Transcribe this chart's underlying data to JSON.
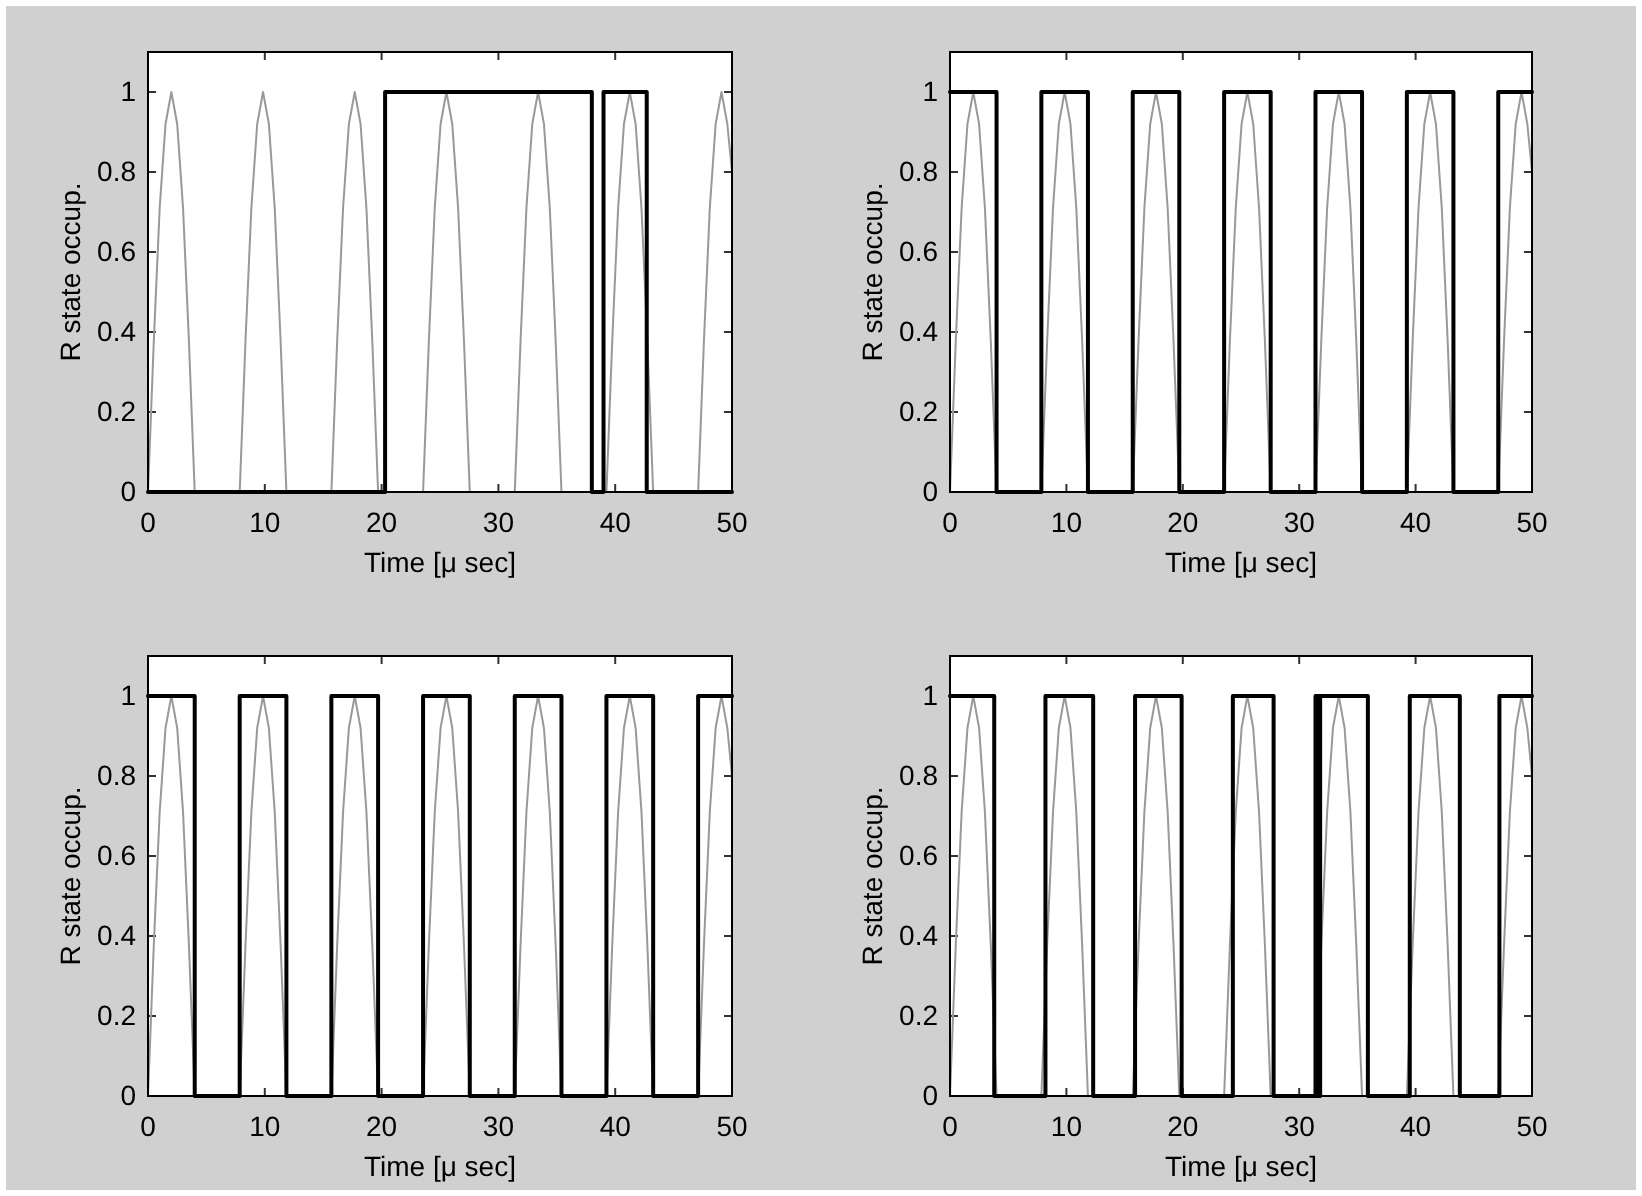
{
  "chart_data": [
    {
      "type": "line",
      "xlabel": "Time [μ sec]",
      "ylabel": "R state occup.",
      "xlim": [
        0,
        50
      ],
      "ylim": [
        0,
        1.1
      ],
      "xticks": [
        0,
        10,
        20,
        30,
        40,
        50
      ],
      "yticks": [
        0,
        0.2,
        0.4,
        0.6,
        0.8,
        1
      ],
      "series": [
        {
          "color": "#999999",
          "x": [
            0,
            0.5,
            1,
            1.5,
            2,
            2.5,
            3,
            3.5,
            4,
            7.85,
            8.35,
            8.85,
            9.35,
            9.85,
            10.35,
            10.85,
            11.35,
            11.85,
            15.7,
            16.2,
            16.7,
            17.2,
            17.7,
            18.2,
            18.7,
            19.2,
            19.7,
            23.55,
            24.05,
            24.55,
            25.05,
            25.55,
            26.05,
            26.55,
            27.05,
            27.55,
            31.4,
            31.9,
            32.4,
            32.9,
            33.4,
            33.9,
            34.4,
            34.9,
            35.4,
            39.25,
            39.75,
            40.25,
            40.75,
            41.25,
            41.75,
            42.25,
            42.75,
            43.25,
            47.1,
            47.6,
            48.1,
            48.6,
            49.1,
            49.6,
            50
          ],
          "values": [
            0,
            0.38,
            0.71,
            0.92,
            1,
            0.92,
            0.71,
            0.38,
            0,
            0,
            0.38,
            0.71,
            0.92,
            1,
            0.92,
            0.71,
            0.38,
            0,
            0,
            0.38,
            0.71,
            0.92,
            1,
            0.92,
            0.71,
            0.38,
            0,
            0,
            0.38,
            0.71,
            0.92,
            1,
            0.92,
            0.71,
            0.38,
            0,
            0,
            0.38,
            0.71,
            0.92,
            1,
            0.92,
            0.71,
            0.38,
            0,
            0,
            0.38,
            0.71,
            0.92,
            1,
            0.92,
            0.71,
            0.38,
            0,
            0,
            0.38,
            0.71,
            0.92,
            1,
            0.92,
            0.8
          ]
        },
        {
          "type": "step",
          "color": "#000000",
          "x": [
            0,
            20.3,
            38,
            39,
            42.7,
            50
          ],
          "values": [
            0,
            1,
            0,
            1,
            0,
            0
          ]
        }
      ]
    },
    {
      "type": "line",
      "xlabel": "Time [μ sec]",
      "ylabel": "R state occup.",
      "xlim": [
        0,
        50
      ],
      "ylim": [
        0,
        1.1
      ],
      "xticks": [
        0,
        10,
        20,
        30,
        40,
        50
      ],
      "yticks": [
        0,
        0.2,
        0.4,
        0.6,
        0.8,
        1
      ],
      "series": [
        {
          "color": "#999999",
          "x": [
            0,
            0.5,
            1,
            1.5,
            2,
            2.5,
            3,
            3.5,
            4,
            7.85,
            8.35,
            8.85,
            9.35,
            9.85,
            10.35,
            10.85,
            11.35,
            11.85,
            15.7,
            16.2,
            16.7,
            17.2,
            17.7,
            18.2,
            18.7,
            19.2,
            19.7,
            23.55,
            24.05,
            24.55,
            25.05,
            25.55,
            26.05,
            26.55,
            27.05,
            27.55,
            31.4,
            31.9,
            32.4,
            32.9,
            33.4,
            33.9,
            34.4,
            34.9,
            35.4,
            39.25,
            39.75,
            40.25,
            40.75,
            41.25,
            41.75,
            42.25,
            42.75,
            43.25,
            47.1,
            47.6,
            48.1,
            48.6,
            49.1,
            49.6,
            50
          ],
          "values": [
            0,
            0.38,
            0.71,
            0.92,
            1,
            0.92,
            0.71,
            0.38,
            0,
            0,
            0.38,
            0.71,
            0.92,
            1,
            0.92,
            0.71,
            0.38,
            0,
            0,
            0.38,
            0.71,
            0.92,
            1,
            0.92,
            0.71,
            0.38,
            0,
            0,
            0.38,
            0.71,
            0.92,
            1,
            0.92,
            0.71,
            0.38,
            0,
            0,
            0.38,
            0.71,
            0.92,
            1,
            0.92,
            0.71,
            0.38,
            0,
            0,
            0.38,
            0.71,
            0.92,
            1,
            0.92,
            0.71,
            0.38,
            0,
            0,
            0.38,
            0.71,
            0.92,
            1,
            0.92,
            0.8
          ]
        },
        {
          "type": "step",
          "color": "#000000",
          "x": [
            0,
            4,
            7.85,
            11.85,
            15.7,
            19.7,
            23.55,
            27.55,
            31.4,
            35.4,
            39.25,
            43.25,
            47.1,
            50
          ],
          "values": [
            1,
            0,
            1,
            0,
            1,
            0,
            1,
            0,
            1,
            0,
            1,
            0,
            1,
            1
          ]
        }
      ]
    },
    {
      "type": "line",
      "xlabel": "Time [μ sec]",
      "ylabel": "R state occup.",
      "xlim": [
        0,
        50
      ],
      "ylim": [
        0,
        1.1
      ],
      "xticks": [
        0,
        10,
        20,
        30,
        40,
        50
      ],
      "yticks": [
        0,
        0.2,
        0.4,
        0.6,
        0.8,
        1
      ],
      "series": [
        {
          "color": "#999999",
          "x": [
            0,
            0.5,
            1,
            1.5,
            2,
            2.5,
            3,
            3.5,
            4,
            7.85,
            8.35,
            8.85,
            9.35,
            9.85,
            10.35,
            10.85,
            11.35,
            11.85,
            15.7,
            16.2,
            16.7,
            17.2,
            17.7,
            18.2,
            18.7,
            19.2,
            19.7,
            23.55,
            24.05,
            24.55,
            25.05,
            25.55,
            26.05,
            26.55,
            27.05,
            27.55,
            31.4,
            31.9,
            32.4,
            32.9,
            33.4,
            33.9,
            34.4,
            34.9,
            35.4,
            39.25,
            39.75,
            40.25,
            40.75,
            41.25,
            41.75,
            42.25,
            42.75,
            43.25,
            47.1,
            47.6,
            48.1,
            48.6,
            49.1,
            49.6,
            50
          ],
          "values": [
            0,
            0.38,
            0.71,
            0.92,
            1,
            0.92,
            0.71,
            0.38,
            0,
            0,
            0.38,
            0.71,
            0.92,
            1,
            0.92,
            0.71,
            0.38,
            0,
            0,
            0.38,
            0.71,
            0.92,
            1,
            0.92,
            0.71,
            0.38,
            0,
            0,
            0.38,
            0.71,
            0.92,
            1,
            0.92,
            0.71,
            0.38,
            0,
            0,
            0.38,
            0.71,
            0.92,
            1,
            0.92,
            0.71,
            0.38,
            0,
            0,
            0.38,
            0.71,
            0.92,
            1,
            0.92,
            0.71,
            0.38,
            0,
            0,
            0.38,
            0.71,
            0.92,
            1,
            0.92,
            0.8
          ]
        },
        {
          "type": "step",
          "color": "#000000",
          "x": [
            0,
            4,
            7.85,
            11.85,
            15.7,
            19.7,
            23.55,
            27.55,
            31.4,
            35.4,
            39.25,
            43.25,
            47.1,
            50
          ],
          "values": [
            1,
            0,
            1,
            0,
            1,
            0,
            1,
            0,
            1,
            0,
            1,
            0,
            1,
            1
          ]
        }
      ]
    },
    {
      "type": "line",
      "xlabel": "Time [μ sec]",
      "ylabel": "R state occup.",
      "xlim": [
        0,
        50
      ],
      "ylim": [
        0,
        1.1
      ],
      "xticks": [
        0,
        10,
        20,
        30,
        40,
        50
      ],
      "yticks": [
        0,
        0.2,
        0.4,
        0.6,
        0.8,
        1
      ],
      "series": [
        {
          "color": "#999999",
          "x": [
            0,
            0.5,
            1,
            1.5,
            2,
            2.5,
            3,
            3.5,
            4,
            7.85,
            8.35,
            8.85,
            9.35,
            9.85,
            10.35,
            10.85,
            11.35,
            11.85,
            15.7,
            16.2,
            16.7,
            17.2,
            17.7,
            18.2,
            18.7,
            19.2,
            19.7,
            23.55,
            24.05,
            24.55,
            25.05,
            25.55,
            26.05,
            26.55,
            27.05,
            27.55,
            31.4,
            31.9,
            32.4,
            32.9,
            33.4,
            33.9,
            34.4,
            34.9,
            35.4,
            39.25,
            39.75,
            40.25,
            40.75,
            41.25,
            41.75,
            42.25,
            42.75,
            43.25,
            47.1,
            47.6,
            48.1,
            48.6,
            49.1,
            49.6,
            50
          ],
          "values": [
            0,
            0.38,
            0.71,
            0.92,
            1,
            0.92,
            0.71,
            0.38,
            0,
            0,
            0.38,
            0.71,
            0.92,
            1,
            0.92,
            0.71,
            0.38,
            0,
            0,
            0.38,
            0.71,
            0.92,
            1,
            0.92,
            0.71,
            0.38,
            0,
            0,
            0.38,
            0.71,
            0.92,
            1,
            0.92,
            0.71,
            0.38,
            0,
            0,
            0.38,
            0.71,
            0.92,
            1,
            0.92,
            0.71,
            0.38,
            0,
            0,
            0.38,
            0.71,
            0.92,
            1,
            0.92,
            0.71,
            0.38,
            0,
            0,
            0.38,
            0.71,
            0.92,
            1,
            0.92,
            0.8
          ]
        },
        {
          "type": "step",
          "color": "#000000",
          "x": [
            0,
            3.8,
            8.2,
            12.3,
            15.9,
            19.9,
            24.3,
            27.8,
            31.4,
            31.5,
            31.6,
            31.7,
            31.8,
            35.9,
            39.5,
            43.8,
            47.2,
            50
          ],
          "values": [
            1,
            0,
            1,
            0,
            1,
            0,
            1,
            0,
            1,
            0,
            1,
            0,
            1,
            0,
            1,
            0,
            1,
            1
          ]
        }
      ]
    }
  ]
}
